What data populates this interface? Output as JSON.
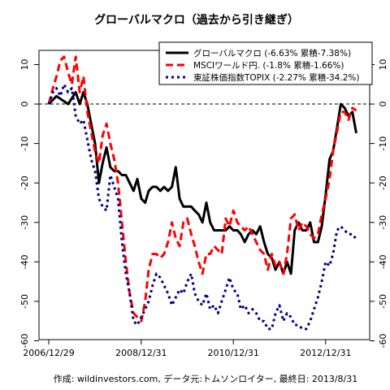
{
  "chart_data": {
    "type": "line",
    "title": "グローバルマクロ（過去から引き継ぎ）",
    "footer": "作成: wildinvestors.com, データ元:トムソンロイター, 最終日: 2013/8/31",
    "xlim": [
      "2006/12/29",
      "2013/10/31"
    ],
    "ylim": [
      -60,
      15
    ],
    "x_ticks": [
      "2006/12/29",
      "2008/12/31",
      "2010/12/31",
      "2012/12/31"
    ],
    "y_ticks": [
      10,
      0,
      -10,
      -20,
      -30,
      -40,
      -50,
      -60
    ],
    "reference_line": 0,
    "legend_position": "top-right",
    "series": [
      {
        "name": "グローバルマクロ (-6.63% 累積-7.38%)",
        "color": "#000000",
        "style": "solid",
        "points": [
          [
            "2006-12-29",
            0
          ],
          [
            "2007-02-28",
            2
          ],
          [
            "2007-05-31",
            0
          ],
          [
            "2007-07-31",
            3
          ],
          [
            "2007-08-31",
            0
          ],
          [
            "2007-09-30",
            3
          ],
          [
            "2007-10-31",
            0
          ],
          [
            "2007-11-30",
            -5
          ],
          [
            "2007-12-31",
            -10
          ],
          [
            "2008-01-31",
            -20
          ],
          [
            "2008-02-29",
            -15
          ],
          [
            "2008-03-31",
            -11
          ],
          [
            "2008-04-30",
            -16
          ],
          [
            "2008-05-31",
            -17
          ],
          [
            "2008-06-30",
            -17
          ],
          [
            "2008-07-31",
            -18
          ],
          [
            "2008-08-31",
            -18
          ],
          [
            "2008-09-30",
            -20
          ],
          [
            "2008-10-31",
            -22
          ],
          [
            "2008-11-30",
            -19
          ],
          [
            "2008-12-31",
            -24
          ],
          [
            "2009-01-31",
            -25
          ],
          [
            "2009-02-28",
            -22
          ],
          [
            "2009-03-31",
            -21
          ],
          [
            "2009-04-30",
            -21
          ],
          [
            "2009-05-31",
            -22
          ],
          [
            "2009-06-30",
            -21
          ],
          [
            "2009-07-31",
            -22
          ],
          [
            "2009-08-31",
            -21
          ],
          [
            "2009-09-30",
            -16
          ],
          [
            "2009-10-31",
            -24
          ],
          [
            "2009-11-30",
            -26
          ],
          [
            "2009-12-31",
            -26
          ],
          [
            "2010-01-31",
            -26
          ],
          [
            "2010-02-28",
            -27
          ],
          [
            "2010-03-31",
            -28
          ],
          [
            "2010-04-30",
            -30
          ],
          [
            "2010-05-31",
            -25
          ],
          [
            "2010-06-30",
            -30
          ],
          [
            "2010-07-31",
            -32
          ],
          [
            "2010-08-31",
            -32
          ],
          [
            "2010-09-30",
            -32
          ],
          [
            "2010-10-31",
            -32
          ],
          [
            "2010-11-30",
            -31
          ],
          [
            "2010-12-31",
            -32
          ],
          [
            "2011-01-31",
            -32
          ],
          [
            "2011-02-28",
            -33
          ],
          [
            "2011-03-31",
            -35
          ],
          [
            "2011-04-30",
            -33
          ],
          [
            "2011-05-31",
            -32
          ],
          [
            "2011-06-30",
            -33
          ],
          [
            "2011-07-31",
            -31
          ],
          [
            "2011-08-31",
            -35
          ],
          [
            "2011-09-30",
            -38
          ],
          [
            "2011-10-31",
            -39
          ],
          [
            "2011-11-30",
            -42
          ],
          [
            "2011-12-31",
            -40
          ],
          [
            "2012-01-31",
            -43
          ],
          [
            "2012-02-29",
            -40
          ],
          [
            "2012-03-31",
            -43
          ],
          [
            "2012-04-30",
            -32
          ],
          [
            "2012-05-31",
            -30
          ],
          [
            "2012-06-30",
            -32
          ],
          [
            "2012-07-31",
            -32
          ],
          [
            "2012-08-31",
            -30
          ],
          [
            "2012-09-30",
            -35
          ],
          [
            "2012-10-31",
            -35
          ],
          [
            "2012-11-30",
            -31
          ],
          [
            "2012-12-31",
            -23
          ],
          [
            "2013-01-31",
            -14
          ],
          [
            "2013-02-28",
            -12
          ],
          [
            "2013-03-31",
            -6
          ],
          [
            "2013-04-30",
            0
          ],
          [
            "2013-05-31",
            -1
          ],
          [
            "2013-06-30",
            -3
          ],
          [
            "2013-07-31",
            -2
          ],
          [
            "2013-08-31",
            -7.38
          ]
        ]
      },
      {
        "name": "MSCIワールド円. (-1.8% 累積-1.66%)",
        "color": "#ff0000",
        "style": "dashed",
        "points": [
          [
            "2006-12-29",
            0
          ],
          [
            "2007-01-31",
            4
          ],
          [
            "2007-02-28",
            7
          ],
          [
            "2007-03-31",
            11
          ],
          [
            "2007-04-30",
            12
          ],
          [
            "2007-05-31",
            8
          ],
          [
            "2007-06-30",
            5
          ],
          [
            "2007-07-31",
            12
          ],
          [
            "2007-08-31",
            3
          ],
          [
            "2007-09-30",
            7
          ],
          [
            "2007-10-31",
            -2
          ],
          [
            "2007-11-30",
            -7
          ],
          [
            "2007-12-31",
            -12
          ],
          [
            "2008-01-31",
            -15
          ],
          [
            "2008-02-29",
            -8
          ],
          [
            "2008-03-31",
            -5
          ],
          [
            "2008-04-30",
            -10
          ],
          [
            "2008-05-31",
            -14
          ],
          [
            "2008-06-30",
            -20
          ],
          [
            "2008-07-31",
            -30
          ],
          [
            "2008-08-31",
            -40
          ],
          [
            "2008-09-30",
            -48
          ],
          [
            "2008-10-31",
            -53
          ],
          [
            "2008-11-30",
            -54
          ],
          [
            "2008-12-31",
            -55
          ],
          [
            "2009-01-31",
            -50
          ],
          [
            "2009-02-28",
            -42
          ],
          [
            "2009-03-31",
            -38
          ],
          [
            "2009-04-30",
            -38
          ],
          [
            "2009-05-31",
            -39
          ],
          [
            "2009-06-30",
            -38
          ],
          [
            "2009-07-31",
            -35
          ],
          [
            "2009-08-31",
            -30
          ],
          [
            "2009-09-30",
            -34
          ],
          [
            "2009-10-31",
            -36
          ],
          [
            "2009-11-30",
            -30
          ],
          [
            "2009-12-31",
            -29
          ],
          [
            "2010-01-31",
            -33
          ],
          [
            "2010-02-28",
            -36
          ],
          [
            "2010-03-31",
            -40
          ],
          [
            "2010-04-30",
            -43
          ],
          [
            "2010-05-31",
            -38
          ],
          [
            "2010-06-30",
            -38
          ],
          [
            "2010-07-31",
            -36
          ],
          [
            "2010-08-31",
            -37
          ],
          [
            "2010-09-30",
            -38
          ],
          [
            "2010-10-31",
            -29
          ],
          [
            "2010-11-30",
            -31
          ],
          [
            "2010-12-31",
            -27
          ],
          [
            "2011-01-31",
            -30
          ],
          [
            "2011-02-28",
            -31
          ],
          [
            "2011-03-31",
            -32
          ],
          [
            "2011-04-30",
            -31
          ],
          [
            "2011-05-31",
            -33
          ],
          [
            "2011-06-30",
            -35
          ],
          [
            "2011-07-31",
            -37
          ],
          [
            "2011-08-31",
            -38
          ],
          [
            "2011-09-30",
            -42
          ],
          [
            "2011-10-31",
            -38
          ],
          [
            "2011-11-30",
            -41
          ],
          [
            "2011-12-31",
            -40
          ],
          [
            "2012-01-31",
            -43
          ],
          [
            "2012-02-29",
            -38
          ],
          [
            "2012-03-31",
            -29
          ],
          [
            "2012-04-30",
            -28
          ],
          [
            "2012-05-31",
            -32
          ],
          [
            "2012-06-30",
            -30
          ],
          [
            "2012-07-31",
            -31
          ],
          [
            "2012-08-31",
            -33
          ],
          [
            "2012-09-30",
            -34
          ],
          [
            "2012-10-31",
            -33
          ],
          [
            "2012-11-30",
            -28
          ],
          [
            "2012-12-31",
            -24
          ],
          [
            "2013-01-31",
            -19
          ],
          [
            "2013-02-28",
            -12
          ],
          [
            "2013-03-31",
            -7
          ],
          [
            "2013-04-30",
            -2
          ],
          [
            "2013-05-31",
            -2
          ],
          [
            "2013-06-30",
            -4
          ],
          [
            "2013-07-31",
            -1
          ],
          [
            "2013-08-31",
            -1.66
          ]
        ]
      },
      {
        "name": "東証株価指数TOPIX (-2.27% 累積-34.2%)",
        "color": "#00008b",
        "style": "dotted",
        "points": [
          [
            "2006-12-29",
            0
          ],
          [
            "2007-01-31",
            3
          ],
          [
            "2007-02-28",
            4
          ],
          [
            "2007-03-31",
            2
          ],
          [
            "2007-04-30",
            5
          ],
          [
            "2007-05-31",
            3
          ],
          [
            "2007-06-30",
            4
          ],
          [
            "2007-07-31",
            -3
          ],
          [
            "2007-08-31",
            -5
          ],
          [
            "2007-09-30",
            -4
          ],
          [
            "2007-10-31",
            -9
          ],
          [
            "2007-11-30",
            -14
          ],
          [
            "2007-12-31",
            -17
          ],
          [
            "2008-01-31",
            -24
          ],
          [
            "2008-02-29",
            -26
          ],
          [
            "2008-03-31",
            -27
          ],
          [
            "2008-04-30",
            -18
          ],
          [
            "2008-05-31",
            -21
          ],
          [
            "2008-06-30",
            -24
          ],
          [
            "2008-07-31",
            -35
          ],
          [
            "2008-08-31",
            -43
          ],
          [
            "2008-09-30",
            -48
          ],
          [
            "2008-10-31",
            -55
          ],
          [
            "2008-11-30",
            -56
          ],
          [
            "2008-12-31",
            -54
          ],
          [
            "2009-01-31",
            -52
          ],
          [
            "2009-02-28",
            -50
          ],
          [
            "2009-03-31",
            -46
          ],
          [
            "2009-04-30",
            -43
          ],
          [
            "2009-05-31",
            -44
          ],
          [
            "2009-06-30",
            -46
          ],
          [
            "2009-07-31",
            -48
          ],
          [
            "2009-08-31",
            -51
          ],
          [
            "2009-09-30",
            -49
          ],
          [
            "2009-10-31",
            -47
          ],
          [
            "2009-11-30",
            -48
          ],
          [
            "2009-12-31",
            -45
          ],
          [
            "2010-01-31",
            -43
          ],
          [
            "2010-02-28",
            -48
          ],
          [
            "2010-03-31",
            -50
          ],
          [
            "2010-04-30",
            -51
          ],
          [
            "2010-05-31",
            -48
          ],
          [
            "2010-06-30",
            -52
          ],
          [
            "2010-07-31",
            -51
          ],
          [
            "2010-08-31",
            -53
          ],
          [
            "2010-09-30",
            -50
          ],
          [
            "2010-10-31",
            -47
          ],
          [
            "2010-11-30",
            -44
          ],
          [
            "2010-12-31",
            -47
          ],
          [
            "2011-01-31",
            -48
          ],
          [
            "2011-02-28",
            -52
          ],
          [
            "2011-03-31",
            -51
          ],
          [
            "2011-04-30",
            -53
          ],
          [
            "2011-05-31",
            -52
          ],
          [
            "2011-06-30",
            -53
          ],
          [
            "2011-07-31",
            -55
          ],
          [
            "2011-08-31",
            -55
          ],
          [
            "2011-09-30",
            -57
          ],
          [
            "2011-10-31",
            -57
          ],
          [
            "2011-11-30",
            -53
          ],
          [
            "2011-12-31",
            -51
          ],
          [
            "2012-01-31",
            -55
          ],
          [
            "2012-02-29",
            -53
          ],
          [
            "2012-03-31",
            -54
          ],
          [
            "2012-04-30",
            -56
          ],
          [
            "2012-05-31",
            -56
          ],
          [
            "2012-06-30",
            -57
          ],
          [
            "2012-07-31",
            -57
          ],
          [
            "2012-08-31",
            -55
          ],
          [
            "2012-09-30",
            -52
          ],
          [
            "2012-10-31",
            -49
          ],
          [
            "2012-11-30",
            -45
          ],
          [
            "2012-12-31",
            -40
          ],
          [
            "2013-01-31",
            -41
          ],
          [
            "2013-02-28",
            -38
          ],
          [
            "2013-03-31",
            -32
          ],
          [
            "2013-04-30",
            -31
          ],
          [
            "2013-05-31",
            -32
          ],
          [
            "2013-06-30",
            -33
          ],
          [
            "2013-07-31",
            -33
          ],
          [
            "2013-08-31",
            -34.2
          ]
        ]
      }
    ]
  }
}
